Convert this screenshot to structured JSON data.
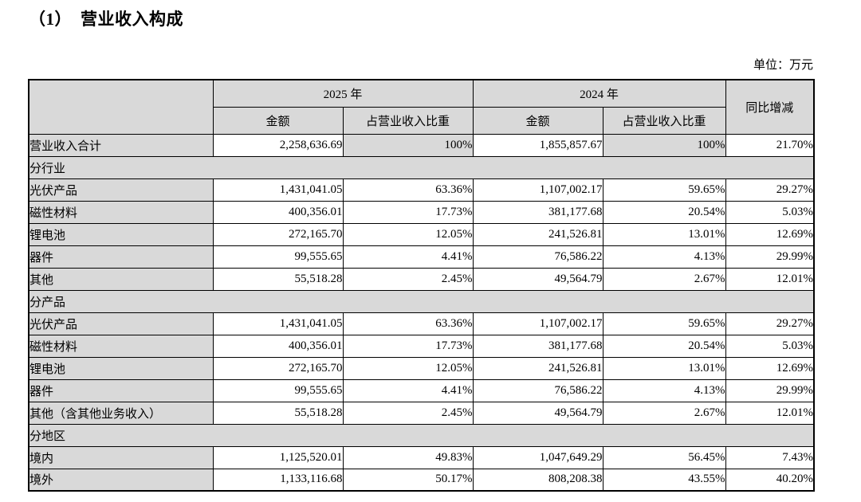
{
  "page": {
    "title": "（1）　营业收入构成",
    "unit_label": "单位：万元"
  },
  "colors": {
    "shaded_cell": "#d9d9d9",
    "border": "#000000",
    "background": "#ffffff"
  },
  "table": {
    "header": {
      "year_2025": "2025 年",
      "year_2024": "2024 年",
      "amount": "金额",
      "ratio": "占营业收入比重",
      "yoy": "同比增减"
    },
    "total_row": {
      "label": "营业收入合计",
      "amount_2025": "2,258,636.69",
      "ratio_2025": "100%",
      "amount_2024": "1,855,857.67",
      "ratio_2024": "100%",
      "yoy": "21.70%"
    },
    "sections": [
      {
        "title": "分行业",
        "rows": [
          {
            "label": "光伏产品",
            "amount_2025": "1,431,041.05",
            "ratio_2025": "63.36%",
            "amount_2024": "1,107,002.17",
            "ratio_2024": "59.65%",
            "yoy": "29.27%"
          },
          {
            "label": "磁性材料",
            "amount_2025": "400,356.01",
            "ratio_2025": "17.73%",
            "amount_2024": "381,177.68",
            "ratio_2024": "20.54%",
            "yoy": "5.03%"
          },
          {
            "label": "锂电池",
            "amount_2025": "272,165.70",
            "ratio_2025": "12.05%",
            "amount_2024": "241,526.81",
            "ratio_2024": "13.01%",
            "yoy": "12.69%"
          },
          {
            "label": "器件",
            "amount_2025": "99,555.65",
            "ratio_2025": "4.41%",
            "amount_2024": "76,586.22",
            "ratio_2024": "4.13%",
            "yoy": "29.99%"
          },
          {
            "label": "其他",
            "amount_2025": "55,518.28",
            "ratio_2025": "2.45%",
            "amount_2024": "49,564.79",
            "ratio_2024": "2.67%",
            "yoy": "12.01%"
          }
        ]
      },
      {
        "title": "分产品",
        "rows": [
          {
            "label": "光伏产品",
            "amount_2025": "1,431,041.05",
            "ratio_2025": "63.36%",
            "amount_2024": "1,107,002.17",
            "ratio_2024": "59.65%",
            "yoy": "29.27%"
          },
          {
            "label": "磁性材料",
            "amount_2025": "400,356.01",
            "ratio_2025": "17.73%",
            "amount_2024": "381,177.68",
            "ratio_2024": "20.54%",
            "yoy": "5.03%"
          },
          {
            "label": "锂电池",
            "amount_2025": "272,165.70",
            "ratio_2025": "12.05%",
            "amount_2024": "241,526.81",
            "ratio_2024": "13.01%",
            "yoy": "12.69%"
          },
          {
            "label": "器件",
            "amount_2025": "99,555.65",
            "ratio_2025": "4.41%",
            "amount_2024": "76,586.22",
            "ratio_2024": "4.13%",
            "yoy": "29.99%"
          },
          {
            "label": "其他（含其他业务收入）",
            "amount_2025": "55,518.28",
            "ratio_2025": "2.45%",
            "amount_2024": "49,564.79",
            "ratio_2024": "2.67%",
            "yoy": "12.01%"
          }
        ]
      },
      {
        "title": "分地区",
        "rows": [
          {
            "label": "境内",
            "amount_2025": "1,125,520.01",
            "ratio_2025": "49.83%",
            "amount_2024": "1,047,649.29",
            "ratio_2024": "56.45%",
            "yoy": "7.43%"
          },
          {
            "label": "境外",
            "amount_2025": "1,133,116.68",
            "ratio_2025": "50.17%",
            "amount_2024": "808,208.38",
            "ratio_2024": "43.55%",
            "yoy": "40.20%"
          }
        ]
      }
    ]
  }
}
